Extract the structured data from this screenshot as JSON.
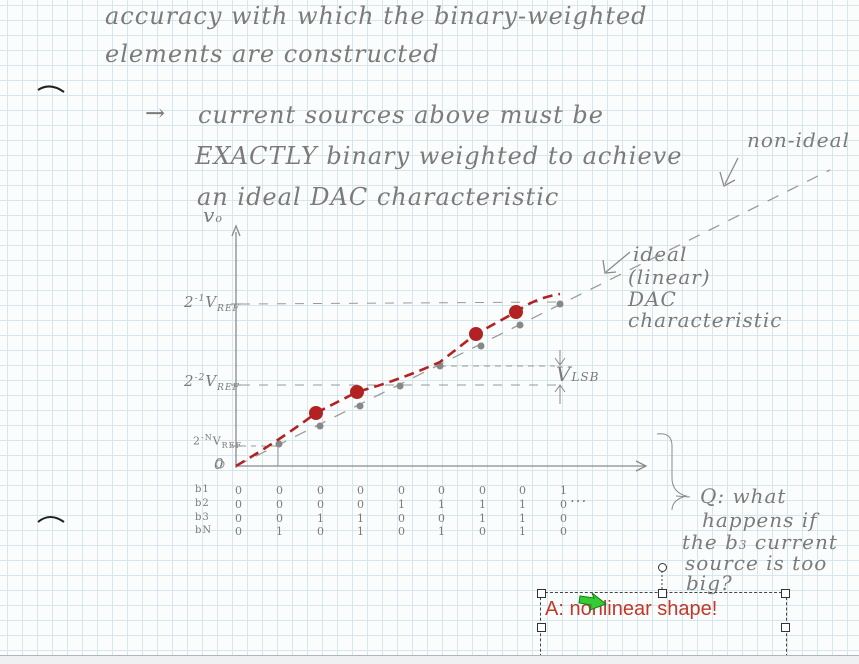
{
  "notes": {
    "line1": "accuracy with which the binary-weighted",
    "line2": "elements are constructed",
    "arrow_text1": "current sources above must be",
    "arrow_text2": "EXACTLY binary weighted to achieve",
    "arrow_text3": "an ideal DAC characteristic",
    "non_ideal": "non-ideal",
    "ideal1": "ideal",
    "ideal2": "(linear)",
    "ideal3": "DAC",
    "ideal4": "characteristic",
    "vlsb": "V",
    "vlsb_sub": "LSB",
    "q1": "Q: what",
    "q2": "happens if",
    "q3": "the b",
    "q3_sub": "3",
    "q3b": "current",
    "q4": "source is too",
    "q5": "big?"
  },
  "graph": {
    "y_axis_label": "v",
    "y_axis_sub": "o",
    "tick_top": "2",
    "tick_top_exp": "-1",
    "tick_top_v": "V",
    "tick_top_sub": "REF",
    "tick_mid": "2",
    "tick_mid_exp": "-2",
    "tick_mid_v": "V",
    "tick_mid_sub": "REF",
    "tick_low": "2",
    "tick_low_exp": "-N",
    "tick_low_v": "V",
    "tick_low_sub": "REF",
    "origin": "0",
    "bit_labels": [
      "b1",
      "b2",
      "b3",
      "bN"
    ],
    "bit_columns": [
      [
        "0",
        "0",
        "0",
        "0"
      ],
      [
        "0",
        "0",
        "0",
        "1"
      ],
      [
        "0",
        "0",
        "1",
        "0"
      ],
      [
        "0",
        "0",
        "1",
        "1"
      ],
      [
        "0",
        "1",
        "0",
        "0"
      ],
      [
        "0",
        "1",
        "0",
        "1"
      ],
      [
        "0",
        "1",
        "1",
        "0"
      ],
      [
        "0",
        "1",
        "1",
        "1"
      ],
      [
        "1",
        "0",
        "0",
        "0"
      ]
    ],
    "ellipsis": "..."
  },
  "annotation": {
    "answer_text": "A: nonlinear shape!"
  },
  "colors": {
    "pencil": "#7b7b7b",
    "red_marker": "#b22222",
    "answer": "#c0392b",
    "cursor": "#2ecc40"
  }
}
